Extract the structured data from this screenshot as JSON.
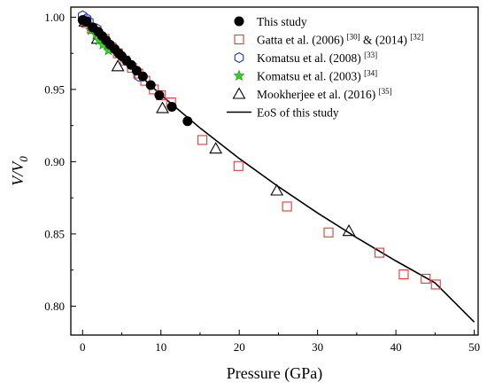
{
  "chart_data": {
    "type": "scatter",
    "xlabel": "Pressure (GPa)",
    "ylabel": "V/V",
    "ylabel_sub": "0",
    "xlim": [
      -1.5,
      50.5
    ],
    "ylim": [
      0.78,
      1.007
    ],
    "x_ticks": [
      0,
      10,
      20,
      30,
      40,
      50
    ],
    "y_ticks": [
      0.8,
      0.85,
      0.9,
      0.95,
      1.0
    ],
    "x_tick_labels": [
      "0",
      "10",
      "20",
      "30",
      "40",
      "50"
    ],
    "y_tick_labels": [
      "0.80",
      "0.85",
      "0.90",
      "0.95",
      "1.00"
    ],
    "legend_position": "top-right",
    "series": [
      {
        "name": "This study",
        "marker": "filled-circle",
        "color": "#000000",
        "points": [
          [
            0.0,
            0.998
          ],
          [
            0.5,
            0.997
          ],
          [
            1.3,
            0.993
          ],
          [
            2.0,
            0.99
          ],
          [
            2.5,
            0.987
          ],
          [
            3.0,
            0.984
          ],
          [
            3.5,
            0.981
          ],
          [
            4.1,
            0.978
          ],
          [
            4.6,
            0.975
          ],
          [
            5.0,
            0.973
          ],
          [
            5.6,
            0.97
          ],
          [
            6.2,
            0.967
          ],
          [
            6.9,
            0.963
          ],
          [
            7.7,
            0.959
          ],
          [
            8.7,
            0.953
          ],
          [
            9.8,
            0.946
          ],
          [
            11.4,
            0.938
          ],
          [
            13.4,
            0.928
          ]
        ]
      },
      {
        "name": "Gatta et al. (2006)",
        "name_ref1": "[30]",
        "name_mid": " & (2014)",
        "name_ref2": "[32]",
        "marker": "open-square",
        "color": "#e03a3a",
        "points": [
          [
            0.5,
            0.996
          ],
          [
            1.2,
            0.992
          ],
          [
            2.0,
            0.988
          ],
          [
            2.8,
            0.985
          ],
          [
            3.7,
            0.979
          ],
          [
            4.5,
            0.975
          ],
          [
            5.4,
            0.97
          ],
          [
            6.3,
            0.965
          ],
          [
            7.1,
            0.961
          ],
          [
            8.0,
            0.956
          ],
          [
            9.1,
            0.95
          ],
          [
            10.0,
            0.946
          ],
          [
            11.3,
            0.941
          ],
          [
            15.3,
            0.915
          ],
          [
            19.9,
            0.897
          ],
          [
            26.1,
            0.869
          ],
          [
            31.4,
            0.851
          ],
          [
            37.9,
            0.837
          ],
          [
            41.0,
            0.822
          ],
          [
            43.8,
            0.819
          ],
          [
            45.1,
            0.815
          ]
        ]
      },
      {
        "name": "Komatsu et al. (2008)",
        "name_ref1": "[33]",
        "marker": "open-hexagon",
        "color": "#1f35c9",
        "points": [
          [
            0.0,
            1.001
          ],
          [
            0.5,
            0.999
          ],
          [
            0.8,
            0.997
          ],
          [
            1.8,
            0.992
          ],
          [
            7.2,
            0.959
          ]
        ]
      },
      {
        "name": "Komatsu et al. (2003)",
        "name_ref1": "[34]",
        "marker": "filled-star",
        "color": "#2fd61b",
        "points": [
          [
            1.1,
            0.991
          ],
          [
            1.7,
            0.988
          ],
          [
            2.1,
            0.984
          ],
          [
            2.6,
            0.981
          ],
          [
            3.3,
            0.977
          ]
        ]
      },
      {
        "name": "Mookherjee et al. (2016)",
        "name_ref1": "[35]",
        "marker": "open-triangle",
        "color": "#000000",
        "points": [
          [
            0.3,
            0.997
          ],
          [
            1.9,
            0.985
          ],
          [
            4.5,
            0.966
          ],
          [
            10.2,
            0.937
          ],
          [
            17.0,
            0.909
          ],
          [
            24.8,
            0.88
          ],
          [
            34.0,
            0.852
          ]
        ]
      },
      {
        "name": "EoS of this study",
        "marker": "line",
        "color": "#000000",
        "points": [
          [
            0,
            1.0
          ],
          [
            5,
            0.9716
          ],
          [
            10,
            0.9462
          ],
          [
            15,
            0.9233
          ],
          [
            20,
            0.9022
          ],
          [
            25,
            0.8827
          ],
          [
            30,
            0.8645
          ],
          [
            35,
            0.8474
          ],
          [
            40,
            0.8313
          ],
          [
            45,
            0.8161
          ],
          [
            50,
            0.789
          ]
        ]
      }
    ]
  }
}
